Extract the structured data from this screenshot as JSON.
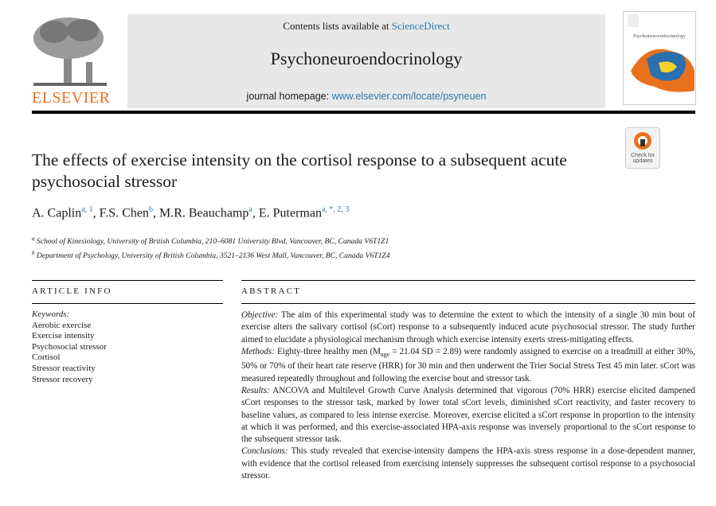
{
  "header": {
    "contents_prefix": "Contents lists available at",
    "sciencedirect": "ScienceDirect",
    "journal": "Psychoneuroendocrinology",
    "homepage_label": "journal homepage:",
    "homepage_url": "www.elsevier.com/locate/psyneuen",
    "publisher": "ELSEVIER",
    "cover_title": "Psychoneuroendocrinology",
    "badge": "Check for updates"
  },
  "title": "The effects of exercise intensity on the cortisol response to a subsequent acute psychosocial stressor",
  "authors": [
    {
      "name": "A. Caplin",
      "marks": "a, 1",
      "sep": ","
    },
    {
      "name": "F.S. Chen",
      "marks": "b",
      "sep": ","
    },
    {
      "name": "M.R. Beauchamp",
      "marks": "a",
      "sep": ","
    },
    {
      "name": "E. Puterman",
      "marks": "a, *, 2, 3"
    }
  ],
  "affiliations": [
    {
      "mark": "a",
      "text": "School of Kinesiology, University of British Columbia, 210–6081 University Blvd, Vancouver, BC, Canada V6T1Z1"
    },
    {
      "mark": "b",
      "text": "Department of Psychology, University of British Columbia, 3521–2136 West Mall, Vancouver, BC, Canada V6T1Z4"
    }
  ],
  "article_info": {
    "heading": "ARTICLE INFO",
    "keywords_label": "Keywords:",
    "keywords": [
      "Aerobic exercise",
      "Exercise intensity",
      "Psychosocial stressor",
      "Cortisol",
      "Stressor reactivity",
      "Stressor recovery"
    ]
  },
  "abstract": {
    "heading": "ABSTRACT",
    "objective": {
      "label": "Objective:",
      "text": "The aim of this experimental study was to determine the extent to which the intensity of a single 30 min bout of exercise alters the salivary cortisol (sCort) response to a subsequently induced acute psychosocial stressor. The study further aimed to elucidate a physiological mechanism through which exercise intensity exerts stress-mitigating effects."
    },
    "methods": {
      "label": "Methods:",
      "text_before": "Eighty-three healthy men (M",
      "subscript": "age",
      "text_after": " = 21.04 SD = 2.89) were randomly assigned to exercise on a treadmill at either 30%, 50% or 70% of their heart rate reserve (HRR) for 30 min and then underwent the Trier Social Stress Test 45 min later. sCort was measured repeatedly throughout and following the exercise bout and stressor task."
    },
    "results": {
      "label": "Results:",
      "text": "ANCOVA and Multilevel Growth Curve Analysis determined that vigorous (70% HRR) exercise elicited dampened sCort responses to the stressor task, marked by lower total sCort levels, diminished sCort reactivity, and faster recovery to baseline values, as compared to less intense exercise. Moreover, exercise elicited a sCort response in proportion to the intensity at which it was performed, and this exercise-associated HPA-axis response was inversely proportional to the sCort response to the subsequent stressor task."
    },
    "conclusions": {
      "label": "Conclusions:",
      "text": "This study revealed that exercise-intensity dampens the HPA-axis stress response in a dose-dependent manner, with evidence that the cortisol released from exercising intensely suppresses the subsequent cortisol response to a psychosocial stressor."
    }
  }
}
